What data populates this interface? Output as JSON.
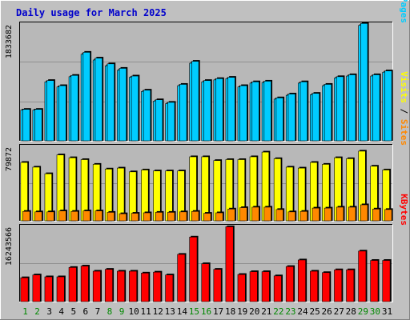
{
  "colors": {
    "background": "#c0c0c0",
    "plot_bg": "#b8b8b8",
    "title": "#0000cc",
    "hits": "#00ccff",
    "files": "#0088ee",
    "pages": "#00aaaa",
    "visits": "#ffff00",
    "sites": "#ff8800",
    "kbytes": "#ff0000",
    "weekend_label": "#008800",
    "weekday_label": "#000000"
  },
  "chart_data": {
    "type": "bar",
    "title": "Daily usage for March 2025",
    "days": [
      "1",
      "2",
      "3",
      "4",
      "5",
      "6",
      "7",
      "8",
      "9",
      "10",
      "11",
      "12",
      "13",
      "14",
      "15",
      "16",
      "17",
      "18",
      "19",
      "20",
      "21",
      "22",
      "23",
      "24",
      "25",
      "26",
      "27",
      "28",
      "29",
      "30",
      "31"
    ],
    "weekend_days": [
      "1",
      "2",
      "8",
      "9",
      "15",
      "16",
      "22",
      "23",
      "29",
      "30"
    ],
    "panels": [
      {
        "id": "hits-files",
        "axis_max_label": "1833682",
        "max": 1833682,
        "legend": [
          "Pages",
          "Files",
          "Hits"
        ],
        "series": [
          {
            "name": "Hits",
            "values": [
              490000,
              490000,
              940000,
              860000,
              1020000,
              1380000,
              1290000,
              1200000,
              1130000,
              1010000,
              790000,
              640000,
              600000,
              880000,
              1240000,
              940000,
              970000,
              990000,
              860000,
              920000,
              930000,
              670000,
              730000,
              920000,
              740000,
              880000,
              1000000,
              1030000,
              1830000,
              1030000,
              1090000
            ]
          },
          {
            "name": "Files",
            "values": [
              480000,
              480000,
              920000,
              840000,
              1000000,
              1350000,
              1260000,
              1170000,
              1100000,
              990000,
              770000,
              620000,
              580000,
              860000,
              1210000,
              920000,
              950000,
              970000,
              840000,
              900000,
              910000,
              650000,
              710000,
              900000,
              720000,
              860000,
              980000,
              1010000,
              1800000,
              1010000,
              1070000
            ]
          }
        ]
      },
      {
        "id": "visits-sites",
        "axis_max_label": "79872",
        "max": 79872,
        "legend": [
          "Sites",
          "Visits"
        ],
        "series": [
          {
            "name": "Visits",
            "values": [
              62000,
              57000,
              50000,
              70000,
              67000,
              65000,
              60000,
              55000,
              56000,
              52000,
              54000,
              53000,
              53000,
              53000,
              68000,
              68000,
              64000,
              65000,
              65000,
              68000,
              73000,
              66000,
              57000,
              56000,
              62000,
              60000,
              67000,
              66000,
              74000,
              58000,
              54000
            ]
          },
          {
            "name": "Sites",
            "values": [
              10000,
              9500,
              9500,
              10500,
              10000,
              10500,
              10500,
              9000,
              7500,
              8000,
              8500,
              9000,
              9000,
              9500,
              10000,
              8000,
              8500,
              12500,
              14000,
              14500,
              14500,
              12000,
              9500,
              10000,
              13500,
              13500,
              14500,
              14500,
              17000,
              12500,
              12000
            ]
          }
        ]
      },
      {
        "id": "kbytes",
        "axis_max_label": "16243566",
        "max": 16243566,
        "legend": [
          "KBytes"
        ],
        "series": [
          {
            "name": "KBytes",
            "values": [
              5100000,
              5700000,
              5300000,
              5300000,
              7300000,
              7600000,
              6500000,
              6900000,
              6500000,
              6500000,
              6100000,
              6300000,
              5700000,
              10100000,
              13800000,
              8100000,
              6900000,
              16000000,
              5800000,
              6400000,
              6400000,
              5500000,
              7500000,
              8900000,
              6500000,
              6200000,
              6800000,
              6800000,
              10800000,
              8800000,
              8800000
            ]
          }
        ]
      }
    ]
  }
}
